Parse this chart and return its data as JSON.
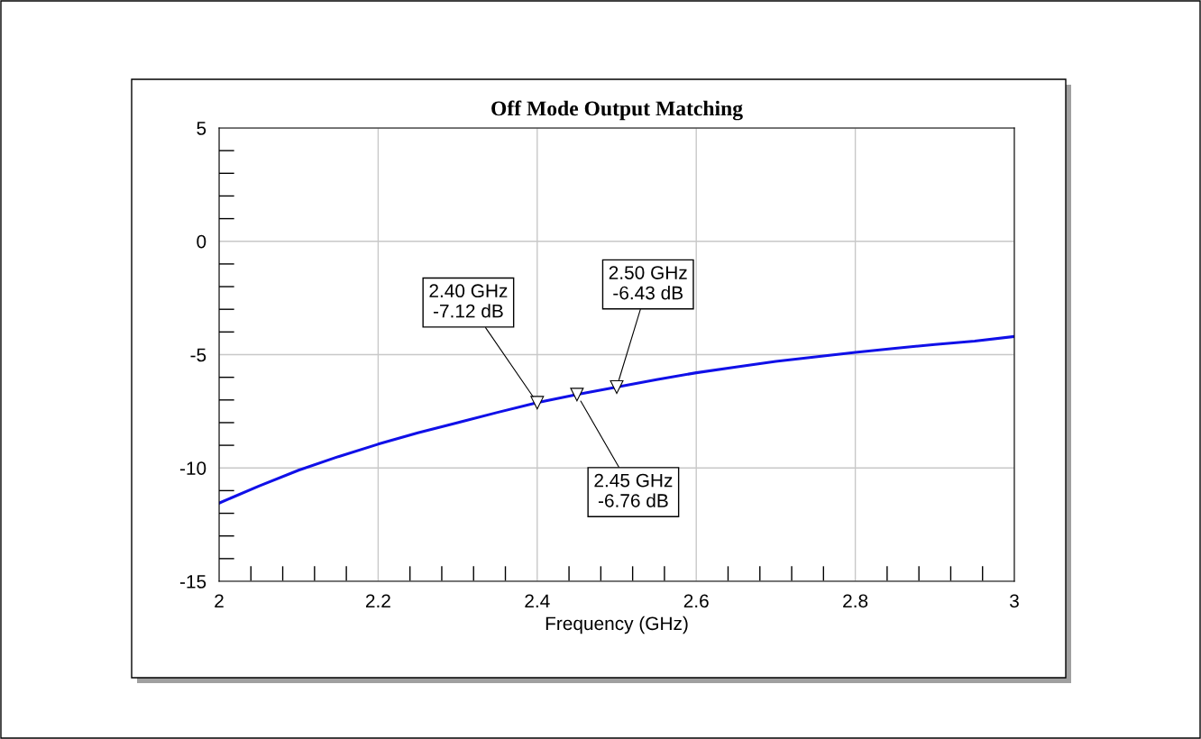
{
  "chart_data": {
    "type": "line",
    "title": "Off Mode Output Matching",
    "xlabel": "Frequency (GHz)",
    "x": [
      2.0,
      2.05,
      2.1,
      2.15,
      2.2,
      2.25,
      2.3,
      2.35,
      2.4,
      2.45,
      2.5,
      2.55,
      2.6,
      2.65,
      2.7,
      2.75,
      2.8,
      2.85,
      2.9,
      2.95,
      3.0
    ],
    "series": [
      {
        "color": "#1010e8",
        "values": [
          -11.55,
          -10.8,
          -10.1,
          -9.5,
          -8.95,
          -8.45,
          -8.0,
          -7.55,
          -7.12,
          -6.76,
          -6.43,
          -6.1,
          -5.8,
          -5.55,
          -5.3,
          -5.1,
          -4.9,
          -4.72,
          -4.55,
          -4.4,
          -4.2
        ]
      }
    ],
    "xlim": [
      2,
      3
    ],
    "xticks": [
      2,
      2.2,
      2.4,
      2.6,
      2.8,
      3
    ],
    "ylim": [
      -15,
      5
    ],
    "yticks": [
      -15,
      -10,
      -5,
      0,
      5
    ],
    "grid": true,
    "marker": "none",
    "line_style": "solid",
    "annotations": [
      {
        "text": "2.40 GHz\n-7.12 dB",
        "x": 2.4,
        "y": -7.12
      },
      {
        "text": "2.50 GHz\n-6.43 dB",
        "x": 2.5,
        "y": -6.43
      },
      {
        "text": "2.45 GHz\n-6.76 dB",
        "x": 2.45,
        "y": -6.76
      }
    ]
  }
}
